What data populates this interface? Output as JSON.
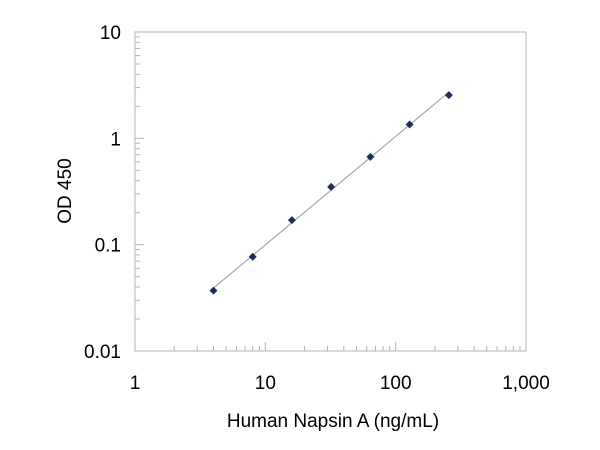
{
  "chart_data": {
    "type": "scatter",
    "title": "",
    "xlabel": "Human Napsin A (ng/mL)",
    "ylabel": "OD 450",
    "x_scale": "log",
    "y_scale": "log",
    "xlim": [
      1,
      1000
    ],
    "ylim": [
      0.01,
      10
    ],
    "x_ticks": [
      1,
      10,
      100,
      1000
    ],
    "x_tick_labels": [
      "1",
      "10",
      "100",
      "1,000"
    ],
    "y_ticks": [
      0.01,
      0.1,
      1,
      10
    ],
    "y_tick_labels": [
      "0.01",
      "0.1",
      "1",
      "10"
    ],
    "grid": false,
    "legend": "none",
    "trendline": true,
    "marker": "diamond",
    "marker_color": "#1f2d5c",
    "trendline_color": "#9a9a9a",
    "series": [
      {
        "points": [
          {
            "x": 4,
            "y": 0.037
          },
          {
            "x": 8,
            "y": 0.077
          },
          {
            "x": 16,
            "y": 0.17
          },
          {
            "x": 32,
            "y": 0.35
          },
          {
            "x": 64,
            "y": 0.67
          },
          {
            "x": 128,
            "y": 1.35
          },
          {
            "x": 256,
            "y": 2.55
          }
        ]
      }
    ]
  }
}
